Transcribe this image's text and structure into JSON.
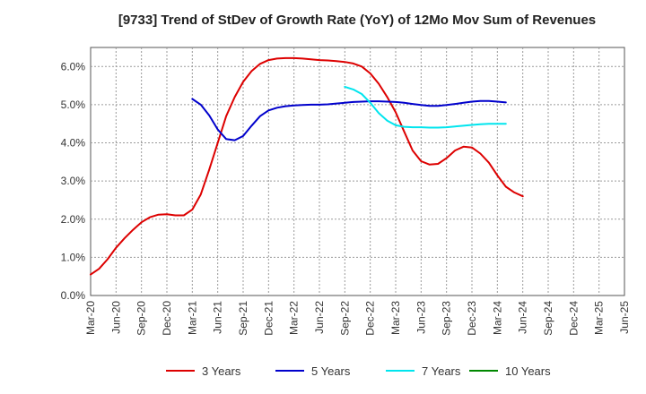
{
  "chart_data": {
    "type": "line",
    "title": "[9733]  Trend of StDev of Growth Rate (YoY) of 12Mo Mov Sum of Revenues",
    "xlabel": "",
    "ylabel": "",
    "ylim": [
      0,
      6.5
    ],
    "y_ticks": [
      "0.0%",
      "1.0%",
      "2.0%",
      "3.0%",
      "4.0%",
      "5.0%",
      "6.0%"
    ],
    "y_tick_values": [
      0,
      1,
      2,
      3,
      4,
      5,
      6
    ],
    "x_ticks": [
      "Mar-20",
      "Jun-20",
      "Sep-20",
      "Dec-20",
      "Mar-21",
      "Jun-21",
      "Sep-21",
      "Dec-21",
      "Mar-22",
      "Jun-22",
      "Sep-22",
      "Dec-22",
      "Mar-23",
      "Jun-23",
      "Sep-23",
      "Dec-23",
      "Mar-24",
      "Jun-24",
      "Sep-24",
      "Dec-24",
      "Mar-25",
      "Jun-25"
    ],
    "grid": true,
    "legend_position": "bottom",
    "series": [
      {
        "name": "3 Years",
        "color": "#dd0000",
        "points": [
          [
            0,
            0.55
          ],
          [
            1,
            0.7
          ],
          [
            2,
            0.95
          ],
          [
            3,
            1.25
          ],
          [
            4,
            1.5
          ],
          [
            5,
            1.72
          ],
          [
            6,
            1.92
          ],
          [
            7,
            2.05
          ],
          [
            8,
            2.12
          ],
          [
            9,
            2.13
          ],
          [
            10,
            2.1
          ],
          [
            11,
            2.1
          ],
          [
            12,
            2.25
          ],
          [
            13,
            2.65
          ],
          [
            14,
            3.3
          ],
          [
            15,
            4.0
          ],
          [
            16,
            4.7
          ],
          [
            17,
            5.2
          ],
          [
            18,
            5.6
          ],
          [
            19,
            5.88
          ],
          [
            20,
            6.07
          ],
          [
            21,
            6.17
          ],
          [
            22,
            6.21
          ],
          [
            23,
            6.22
          ],
          [
            24,
            6.22
          ],
          [
            25,
            6.21
          ],
          [
            26,
            6.19
          ],
          [
            27,
            6.17
          ],
          [
            28,
            6.16
          ],
          [
            29,
            6.14
          ],
          [
            30,
            6.12
          ],
          [
            31,
            6.08
          ],
          [
            32,
            6.0
          ],
          [
            33,
            5.82
          ],
          [
            34,
            5.55
          ],
          [
            35,
            5.2
          ],
          [
            36,
            4.8
          ],
          [
            37,
            4.3
          ],
          [
            38,
            3.8
          ],
          [
            39,
            3.52
          ],
          [
            40,
            3.43
          ],
          [
            41,
            3.45
          ],
          [
            42,
            3.6
          ],
          [
            43,
            3.8
          ],
          [
            44,
            3.9
          ],
          [
            45,
            3.88
          ],
          [
            46,
            3.72
          ],
          [
            47,
            3.48
          ],
          [
            48,
            3.15
          ],
          [
            49,
            2.85
          ],
          [
            50,
            2.7
          ],
          [
            51,
            2.6
          ]
        ]
      },
      {
        "name": "5 Years",
        "color": "#0000cc",
        "points": [
          [
            12,
            5.15
          ],
          [
            13,
            5.0
          ],
          [
            14,
            4.72
          ],
          [
            15,
            4.35
          ],
          [
            16,
            4.1
          ],
          [
            17,
            4.07
          ],
          [
            18,
            4.18
          ],
          [
            19,
            4.45
          ],
          [
            20,
            4.7
          ],
          [
            21,
            4.85
          ],
          [
            22,
            4.92
          ],
          [
            23,
            4.96
          ],
          [
            24,
            4.98
          ],
          [
            25,
            4.99
          ],
          [
            26,
            5.0
          ],
          [
            27,
            5.0
          ],
          [
            28,
            5.01
          ],
          [
            29,
            5.03
          ],
          [
            30,
            5.05
          ],
          [
            31,
            5.07
          ],
          [
            32,
            5.08
          ],
          [
            33,
            5.09
          ],
          [
            34,
            5.09
          ],
          [
            35,
            5.08
          ],
          [
            36,
            5.07
          ],
          [
            37,
            5.05
          ],
          [
            38,
            5.02
          ],
          [
            39,
            4.99
          ],
          [
            40,
            4.97
          ],
          [
            41,
            4.97
          ],
          [
            42,
            4.99
          ],
          [
            43,
            5.02
          ],
          [
            44,
            5.05
          ],
          [
            45,
            5.08
          ],
          [
            46,
            5.1
          ],
          [
            47,
            5.1
          ],
          [
            48,
            5.08
          ],
          [
            49,
            5.06
          ]
        ]
      },
      {
        "name": "7 Years",
        "color": "#00e5ee",
        "points": [
          [
            30,
            5.47
          ],
          [
            31,
            5.4
          ],
          [
            32,
            5.28
          ],
          [
            33,
            5.05
          ],
          [
            34,
            4.78
          ],
          [
            35,
            4.58
          ],
          [
            36,
            4.46
          ],
          [
            37,
            4.42
          ],
          [
            38,
            4.41
          ],
          [
            39,
            4.41
          ],
          [
            40,
            4.4
          ],
          [
            41,
            4.4
          ],
          [
            42,
            4.41
          ],
          [
            43,
            4.43
          ],
          [
            44,
            4.45
          ],
          [
            45,
            4.47
          ],
          [
            46,
            4.49
          ],
          [
            47,
            4.5
          ],
          [
            48,
            4.5
          ],
          [
            49,
            4.5
          ]
        ]
      },
      {
        "name": "10 Years",
        "color": "#008800",
        "points": []
      }
    ]
  }
}
